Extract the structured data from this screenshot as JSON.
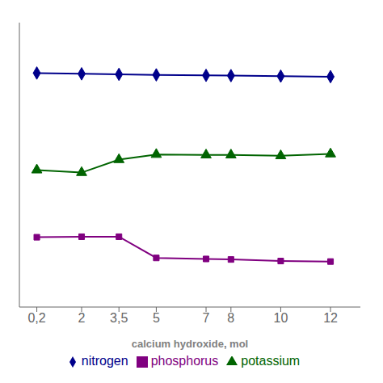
{
  "chart_data": {
    "type": "line",
    "xlabel": "calcium hydroxide, mol",
    "x": [
      0.2,
      2,
      3.5,
      5,
      7,
      8,
      10,
      12
    ],
    "series": [
      {
        "name": "nitrogen",
        "color": "#00008B",
        "marker": "diamond",
        "values": [
          9.55,
          9.52,
          9.5,
          9.48,
          9.46,
          9.45,
          9.43,
          9.41
        ]
      },
      {
        "name": "phosphorus",
        "color": "#800080",
        "marker": "square",
        "values": [
          3.2,
          3.22,
          3.22,
          2.4,
          2.36,
          2.34,
          2.28,
          2.26
        ]
      },
      {
        "name": "potassium",
        "color": "#006400",
        "marker": "triangle",
        "values": [
          5.8,
          5.7,
          6.2,
          6.4,
          6.38,
          6.38,
          6.35,
          6.42
        ]
      }
    ],
    "xlim": [
      -0.5,
      13.2
    ],
    "xticks": [
      {
        "value": 0.2,
        "label": "0,2"
      },
      2,
      {
        "value": 3.5,
        "label": "3,5"
      },
      5,
      7,
      8,
      10,
      12
    ],
    "ylim": [
      0.5,
      11.5
    ],
    "grid": false,
    "legend": "bottom",
    "tick_labels": "x"
  }
}
